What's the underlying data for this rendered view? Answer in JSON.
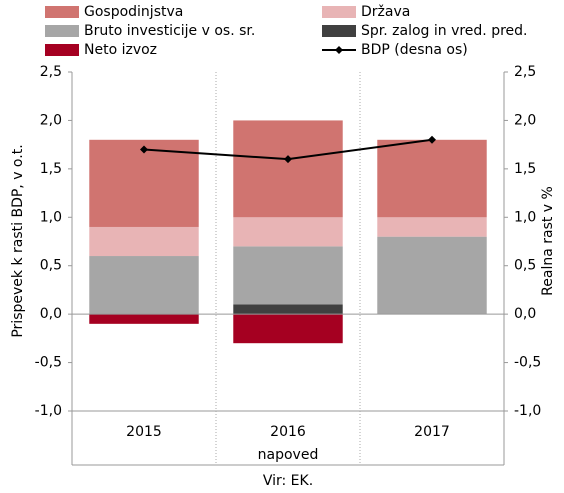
{
  "chart_data": {
    "type": "bar",
    "categories": [
      "2015",
      "2016",
      "2017"
    ],
    "series": [
      {
        "name": "Gospodinjstva",
        "color": "#d07470",
        "values": [
          0.9,
          1.0,
          0.8
        ]
      },
      {
        "name": "Država",
        "color": "#e8b4b5",
        "values": [
          0.3,
          0.3,
          0.2
        ]
      },
      {
        "name": "Bruto investicije v os. sr.",
        "color": "#a6a6a6",
        "values": [
          0.6,
          0.6,
          0.8
        ]
      },
      {
        "name": "Spr. zalog in vred. pred.",
        "color": "#404040",
        "values": [
          0,
          0.1,
          0
        ]
      },
      {
        "name": "Neto izvoz",
        "color": "#a50021",
        "values": [
          -0.1,
          -0.3,
          0
        ]
      },
      {
        "name": "BDP (desna os)",
        "color": "#000000",
        "type": "line",
        "axis": "y2",
        "values": [
          1.7,
          1.6,
          1.8
        ]
      }
    ],
    "ylabel": "Prispevek k rasti BDP, v o.t.",
    "y2label": "Realna rast v %",
    "ylim": [
      -1.0,
      2.5
    ],
    "yticks": [
      {
        "value": -1.0,
        "label": "-1,0"
      },
      {
        "value": -0.5,
        "label": "-0,5"
      },
      {
        "value": 0,
        "label": "0,0"
      },
      {
        "value": 0.5,
        "label": "0,5"
      },
      {
        "value": 1.0,
        "label": "1,0"
      },
      {
        "value": 1.5,
        "label": "1,5"
      },
      {
        "value": 2.0,
        "label": "2,0"
      },
      {
        "value": 2.5,
        "label": "2,5"
      }
    ],
    "y2lim": [
      -1.0,
      2.5
    ],
    "y2ticks": [
      {
        "value": -1.0,
        "label": "-1,0"
      },
      {
        "value": -0.5,
        "label": "-0,5"
      },
      {
        "value": 0,
        "label": "0,0"
      },
      {
        "value": 0.5,
        "label": "0,5"
      },
      {
        "value": 1.0,
        "label": "1,0"
      },
      {
        "value": 1.5,
        "label": "1,5"
      },
      {
        "value": 2.0,
        "label": "2,0"
      },
      {
        "value": 2.5,
        "label": "2,5"
      }
    ],
    "annotation": "napoved",
    "source": "Vir: EK."
  }
}
